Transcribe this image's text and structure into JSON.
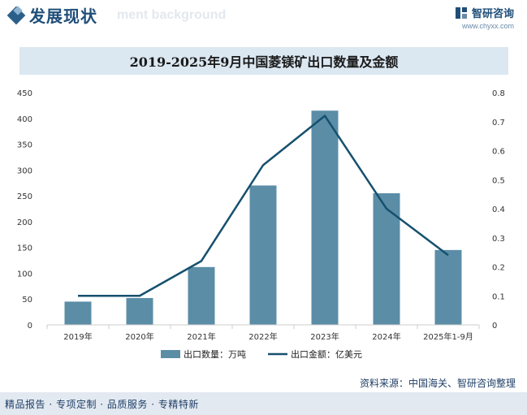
{
  "header": {
    "title": "发展现状",
    "bg_text": "ment background",
    "brand_name": "智研咨询",
    "brand_url": "www.chyxx.com"
  },
  "footer": {
    "tags": "精品报告 · 专项定制 · 品质服务 · 专精特新",
    "source": "资料来源：中国海关、智研咨询整理"
  },
  "colors": {
    "bar": "#5b8da7",
    "line": "#16506e",
    "title_bg": "#dbe7f1"
  },
  "chart_data": {
    "type": "bar+line",
    "title": "2019-2025年9月中国菱镁矿出口数量及金额",
    "categories": [
      "2019年",
      "2020年",
      "2021年",
      "2022年",
      "2023年",
      "2024年",
      "2025年1-9月"
    ],
    "series": [
      {
        "name": "出口数量：万吨",
        "type": "bar",
        "axis": "left",
        "values": [
          45,
          52,
          112,
          270,
          415,
          255,
          145
        ]
      },
      {
        "name": "出口金额：亿美元",
        "type": "line",
        "axis": "right",
        "values": [
          0.1,
          0.1,
          0.22,
          0.55,
          0.72,
          0.4,
          0.24
        ]
      }
    ],
    "left_axis": {
      "min": 0,
      "max": 450,
      "step": 50,
      "ticks": [
        "0",
        "50",
        "100",
        "150",
        "200",
        "250",
        "300",
        "350",
        "400",
        "450"
      ]
    },
    "right_axis": {
      "min": 0,
      "max": 0.8,
      "step": 0.1,
      "ticks": [
        "0",
        "0.1",
        "0.2",
        "0.3",
        "0.4",
        "0.5",
        "0.6",
        "0.7",
        "0.8"
      ]
    },
    "grid": false,
    "legend_position": "bottom"
  }
}
